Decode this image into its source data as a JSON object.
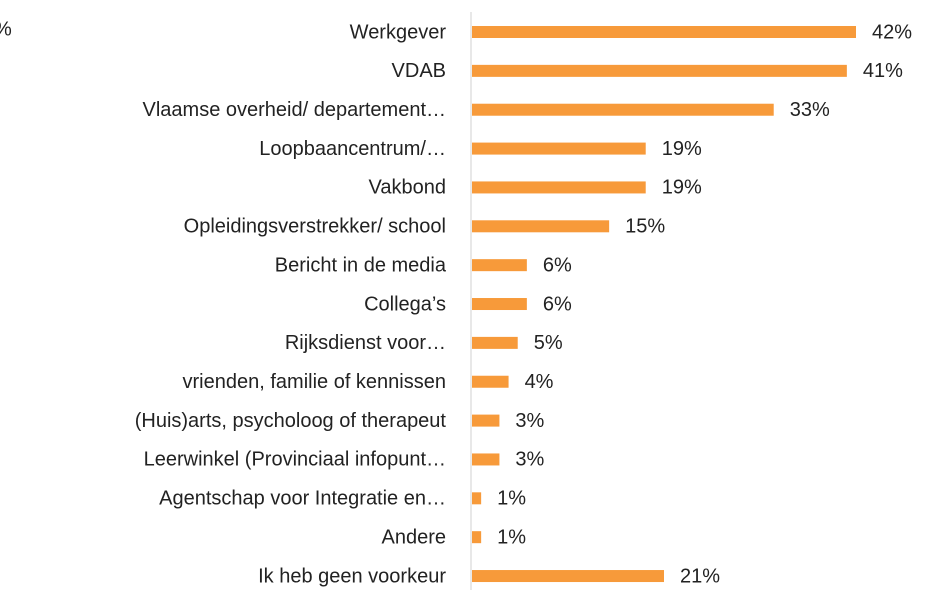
{
  "chart_data": {
    "type": "bar",
    "orientation": "horizontal",
    "annotation": "%",
    "categories": [
      "Werkgever",
      "VDAB",
      "Vlaamse overheid/ departement…",
      "Loopbaancentrum/…",
      "Vakbond",
      "Opleidingsverstrekker/ school",
      "Bericht in de media",
      "Collega’s",
      "Rijksdienst voor…",
      "vrienden, familie of kennissen",
      "(Huis)arts, psycholoog of therapeut",
      "Leerwinkel (Provinciaal infopunt…",
      "Agentschap voor Integratie en…",
      "Andere",
      "Ik heb geen voorkeur"
    ],
    "values": [
      42,
      41,
      33,
      19,
      19,
      15,
      6,
      6,
      5,
      4,
      3,
      3,
      1,
      1,
      21
    ],
    "value_labels": [
      "42%",
      "41%",
      "33%",
      "19%",
      "19%",
      "15%",
      "6%",
      "6%",
      "5%",
      "4%",
      "3%",
      "3%",
      "1%",
      "1%",
      "21%"
    ],
    "color": "#f79a3a"
  }
}
